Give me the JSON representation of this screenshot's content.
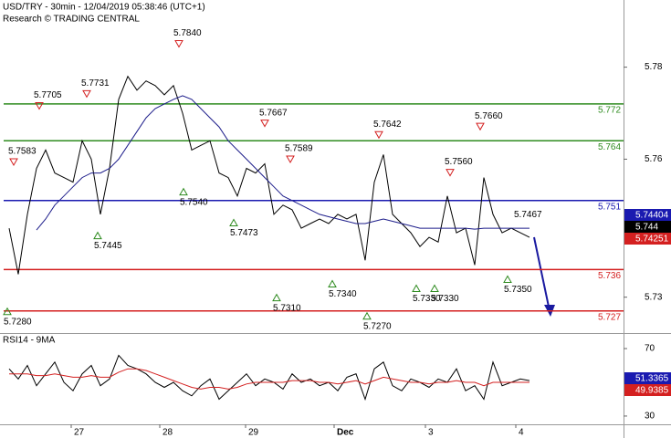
{
  "chart_data": [
    {
      "type": "line",
      "title": "USD/TRY - 30min - 12/04/2019 05:38:46 (UTC+1)",
      "subtitle": "Research © TRADING CENTRAL",
      "x": [
        1,
        2,
        3,
        4,
        5,
        6,
        7,
        8,
        9,
        10,
        11,
        12,
        13,
        14,
        15,
        16,
        17,
        18,
        19,
        20,
        21,
        22,
        23,
        24,
        25,
        26,
        27,
        28,
        29,
        30,
        31,
        32,
        33,
        34,
        35,
        36,
        37,
        38,
        39,
        40,
        41,
        42,
        43,
        44,
        45,
        46,
        47,
        48,
        49,
        50,
        51,
        52,
        53,
        54,
        55,
        56,
        57,
        58
      ],
      "xlim": [
        0,
        68.3
      ],
      "ylim": [
        5.7222,
        5.7946
      ],
      "yticks": [
        5.73,
        5.76,
        5.78
      ],
      "series": [
        {
          "color": "#000000",
          "values": [
            5.745,
            5.735,
            5.748,
            5.758,
            5.762,
            5.757,
            5.756,
            5.755,
            5.764,
            5.76,
            5.748,
            5.758,
            5.773,
            5.778,
            5.775,
            5.777,
            5.776,
            5.774,
            5.776,
            5.77,
            5.762,
            5.763,
            5.764,
            5.757,
            5.756,
            5.752,
            5.758,
            5.757,
            5.759,
            5.748,
            5.75,
            5.749,
            5.745,
            5.746,
            5.747,
            5.746,
            5.748,
            5.747,
            5.748,
            5.738,
            5.755,
            5.761,
            5.748,
            5.746,
            5.744,
            5.741,
            5.743,
            5.742,
            5.752,
            5.744,
            5.745,
            5.737,
            5.756,
            5.748,
            5.744,
            5.745,
            5.744,
            5.743
          ]
        },
        {
          "color": "#1c1c8a",
          "values": [
            null,
            null,
            null,
            5.7446,
            5.747,
            5.75,
            5.752,
            5.754,
            5.756,
            5.757,
            5.757,
            5.758,
            5.76,
            5.763,
            5.766,
            5.769,
            5.771,
            5.772,
            5.773,
            5.7738,
            5.773,
            5.771,
            5.769,
            5.767,
            5.764,
            5.762,
            5.76,
            5.758,
            5.756,
            5.754,
            5.752,
            5.751,
            5.75,
            5.749,
            5.748,
            5.7475,
            5.747,
            5.7465,
            5.746,
            5.746,
            5.7465,
            5.747,
            5.7465,
            5.746,
            5.7455,
            5.745,
            5.745,
            5.745,
            5.745,
            5.745,
            5.745,
            5.7448,
            5.745,
            5.745,
            5.745,
            5.745,
            5.745,
            5.745
          ]
        }
      ],
      "levels": [
        {
          "value": 5.772,
          "label": "5.772",
          "color": "#2e8b1f"
        },
        {
          "value": 5.764,
          "label": "5.764",
          "color": "#2e8b1f"
        },
        {
          "value": 5.751,
          "label": "5.751",
          "color": "#1a1ab0"
        },
        {
          "value": 5.736,
          "label": "5.736",
          "color": "#d42020"
        },
        {
          "value": 5.727,
          "label": "5.727",
          "color": "#d42020"
        }
      ],
      "highs": [
        {
          "x": 1.5,
          "value": 5.7583,
          "label": "5.7583"
        },
        {
          "x": 4.3,
          "value": 5.7705,
          "label": "5.7705"
        },
        {
          "x": 9.5,
          "value": 5.7731,
          "label": "5.7731"
        },
        {
          "x": 19.6,
          "value": 5.784,
          "label": "5.7840"
        },
        {
          "x": 29.0,
          "value": 5.7667,
          "label": "5.7667"
        },
        {
          "x": 31.8,
          "value": 5.7589,
          "label": "5.7589"
        },
        {
          "x": 41.5,
          "value": 5.7642,
          "label": "5.7642"
        },
        {
          "x": 49.3,
          "value": 5.756,
          "label": "5.7560"
        },
        {
          "x": 52.6,
          "value": 5.766,
          "label": "5.7660"
        }
      ],
      "lows": [
        {
          "x": 0.8,
          "value": 5.728,
          "label": "5.7280"
        },
        {
          "x": 10.7,
          "value": 5.7445,
          "label": "5.7445"
        },
        {
          "x": 20.1,
          "value": 5.754,
          "label": "5.7540"
        },
        {
          "x": 25.6,
          "value": 5.7473,
          "label": "5.7473"
        },
        {
          "x": 30.3,
          "value": 5.731,
          "label": "5.7310"
        },
        {
          "x": 36.4,
          "value": 5.734,
          "label": "5.7340"
        },
        {
          "x": 40.2,
          "value": 5.727,
          "label": "5.7270"
        },
        {
          "x": 45.6,
          "value": 5.733,
          "label": "5.7330"
        },
        {
          "x": 47.6,
          "value": 5.733,
          "label": "5.7330"
        },
        {
          "x": 55.6,
          "value": 5.735,
          "label": "5.7350"
        }
      ],
      "notes": [
        {
          "x": 56.3,
          "value": 5.7467,
          "label": "5.7467"
        }
      ],
      "last_values": [
        {
          "value": 5.74404,
          "color": "#1a1ab0"
        },
        {
          "value": 5.744,
          "color": "#000000"
        },
        {
          "value": 5.74251,
          "color": "#d42020"
        }
      ]
    },
    {
      "type": "line",
      "title": "RSI14 - 9MA",
      "x": [
        1,
        2,
        3,
        4,
        5,
        6,
        7,
        8,
        9,
        10,
        11,
        12,
        13,
        14,
        15,
        16,
        17,
        18,
        19,
        20,
        21,
        22,
        23,
        24,
        25,
        26,
        27,
        28,
        29,
        30,
        31,
        32,
        33,
        34,
        35,
        36,
        37,
        38,
        39,
        40,
        41,
        42,
        43,
        44,
        45,
        46,
        47,
        48,
        49,
        50,
        51,
        52,
        53,
        54,
        55,
        56,
        57,
        58
      ],
      "xlim": [
        0,
        68.3
      ],
      "xticks": [
        {
          "value": 7.8,
          "label": "27"
        },
        {
          "value": 17.5,
          "label": "28"
        },
        {
          "value": 26.9,
          "label": "29"
        },
        {
          "value": 36.6,
          "label": "Dec"
        },
        {
          "value": 46.6,
          "label": "3"
        },
        {
          "value": 56.5,
          "label": "4"
        }
      ],
      "ylim": [
        25.1,
        79.2
      ],
      "yticks": [
        30,
        70
      ],
      "series": [
        {
          "color": "#000000",
          "values": [
            58,
            52,
            60,
            48,
            55,
            62,
            50,
            45,
            55,
            60,
            48,
            52,
            66,
            60,
            58,
            55,
            50,
            47,
            50,
            45,
            42,
            48,
            52,
            40,
            45,
            50,
            55,
            48,
            52,
            50,
            46,
            55,
            50,
            52,
            48,
            50,
            45,
            53,
            55,
            40,
            58,
            62,
            48,
            45,
            52,
            50,
            47,
            52,
            50,
            58,
            45,
            48,
            40,
            62,
            48,
            50,
            52,
            51
          ]
        },
        {
          "color": "#d42020",
          "values": [
            55,
            55,
            55,
            54,
            54,
            55,
            54,
            53,
            53,
            54,
            53,
            53,
            56,
            58,
            58,
            57,
            55,
            53,
            51,
            49,
            47,
            46,
            47,
            47,
            46,
            47,
            49,
            50,
            50,
            50,
            50,
            51,
            51,
            51,
            50,
            50,
            49,
            50,
            51,
            49,
            51,
            53,
            52,
            51,
            50,
            50,
            49,
            50,
            50,
            51,
            50,
            50,
            48,
            50,
            50,
            50,
            50,
            50
          ]
        }
      ],
      "last_values": [
        {
          "value": 51.3365,
          "color": "#1a1ab0"
        },
        {
          "value": 49.9385,
          "color": "#d42020"
        }
      ]
    }
  ]
}
